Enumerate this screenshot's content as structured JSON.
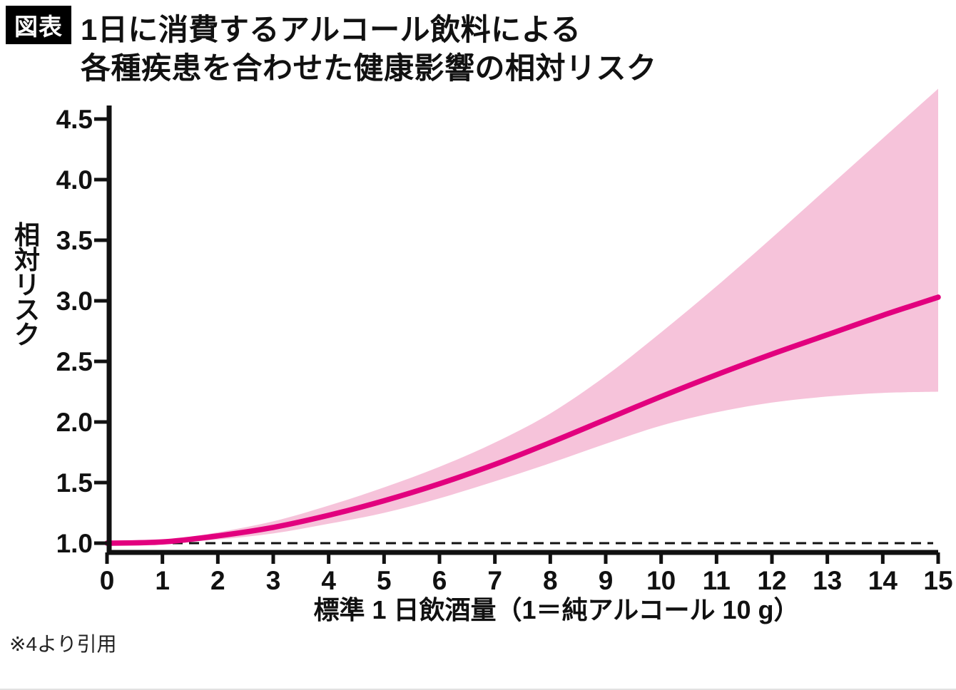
{
  "header": {
    "badge": "図表",
    "title_line1": "1日に消費するアルコール飲料による",
    "title_line2": "各種疾患を合わせた健康影響の相対リスク"
  },
  "footnote": "※4より引用",
  "chart_data": {
    "type": "line",
    "title": "1日に消費するアルコール飲料による各種疾患を合わせた健康影響の相対リスク",
    "xlabel": "標準 1 日飲酒量（1＝純アルコール 10 g）",
    "ylabel": "相対リスク",
    "x": [
      0,
      1,
      2,
      3,
      4,
      5,
      6,
      7,
      8,
      9,
      10,
      11,
      12,
      13,
      14,
      15
    ],
    "series": [
      {
        "name": "relative-risk-center",
        "role": "center",
        "values": [
          1.0,
          1.01,
          1.06,
          1.13,
          1.23,
          1.35,
          1.49,
          1.65,
          1.83,
          2.02,
          2.21,
          2.39,
          2.56,
          2.72,
          2.88,
          3.03
        ]
      },
      {
        "name": "uncertainty-band-lower",
        "role": "lower",
        "values": [
          1.0,
          1.0,
          1.03,
          1.08,
          1.16,
          1.25,
          1.37,
          1.51,
          1.66,
          1.82,
          1.97,
          2.08,
          2.16,
          2.21,
          2.24,
          2.25
        ]
      },
      {
        "name": "uncertainty-band-upper",
        "role": "upper",
        "values": [
          1.0,
          1.02,
          1.09,
          1.18,
          1.31,
          1.46,
          1.63,
          1.83,
          2.07,
          2.38,
          2.74,
          3.12,
          3.52,
          3.93,
          4.34,
          4.75
        ]
      }
    ],
    "baseline": 1.0,
    "xlim": [
      0,
      15
    ],
    "ylim": [
      0.97,
      4.75
    ],
    "xtick_labels": [
      "0",
      "1",
      "2",
      "3",
      "4",
      "5",
      "6",
      "7",
      "8",
      "9",
      "10",
      "11",
      "12",
      "13",
      "14",
      "15"
    ],
    "ytick_labels": [
      "1.0",
      "1.5",
      "2.0",
      "2.5",
      "3.0",
      "3.5",
      "4.0",
      "4.5"
    ],
    "grid": false,
    "legend": "none",
    "colors": {
      "line": "#e2007e",
      "band": "#f6c3da",
      "axis": "#111111",
      "baseline": "#111111",
      "badge_bg": "#000000",
      "badge_text": "#ffffff"
    }
  }
}
